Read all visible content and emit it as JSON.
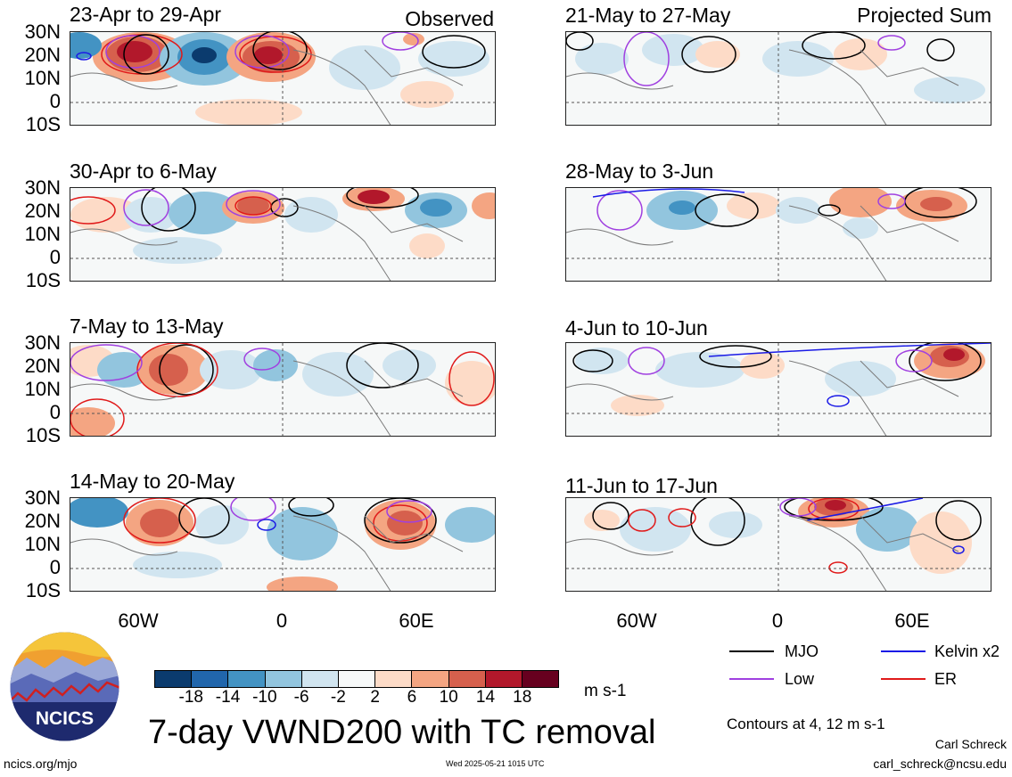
{
  "left_header_label": "Observed",
  "right_header_label": "Projected Sum",
  "panels_left": [
    {
      "title": "23-Apr to 29-Apr"
    },
    {
      "title": "30-Apr to 6-May"
    },
    {
      "title": "7-May to 13-May"
    },
    {
      "title": "14-May to 20-May"
    }
  ],
  "panels_right": [
    {
      "title": "21-May to 27-May"
    },
    {
      "title": "28-May to 3-Jun"
    },
    {
      "title": "4-Jun to 10-Jun"
    },
    {
      "title": "11-Jun to 17-Jun"
    }
  ],
  "lat_labels": [
    "30N",
    "20N",
    "10N",
    "0",
    "10S"
  ],
  "lon_labels": [
    "60W",
    "0",
    "60E"
  ],
  "colorbar": {
    "tick_labels": [
      "-18",
      "-14",
      "-10",
      "-6",
      "-2",
      "2",
      "6",
      "10",
      "14",
      "18"
    ],
    "colors": [
      "#0b3b6e",
      "#2166ac",
      "#4393c3",
      "#92c5de",
      "#d1e5f0",
      "#f7f9f9",
      "#fddbc7",
      "#f4a582",
      "#d6604d",
      "#b2182b",
      "#67001f"
    ],
    "units": "m s-1"
  },
  "legend": {
    "mjo": {
      "label": "MJO",
      "color": "#000000"
    },
    "kelvin": {
      "label": "Kelvin x2",
      "color": "#1a1ae6"
    },
    "low": {
      "label": "Low",
      "color": "#a040e0"
    },
    "er": {
      "label": "ER",
      "color": "#e01a1a"
    }
  },
  "main_title": "7-day VWND200 with TC removal",
  "contours_note": "Contours at 4, 12 m s-1",
  "logo_text": "NCICS",
  "site_url": "ncics.org/mjo",
  "timestamp": "Wed 2025-05-21 1015 UTC",
  "author": "Carl Schreck",
  "email": "carl_schreck@ncsu.edu"
}
